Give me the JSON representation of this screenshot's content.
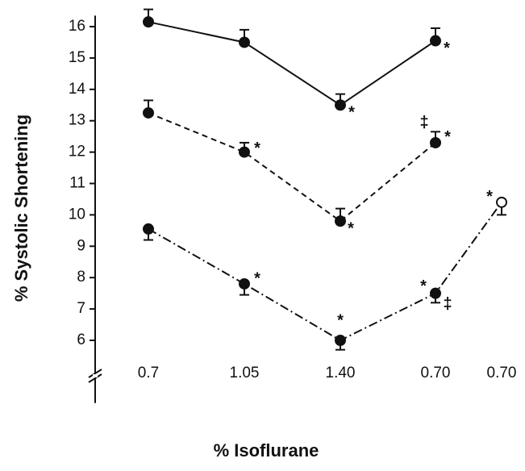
{
  "chart_data": {
    "type": "line",
    "x_label": "% Isoflurane",
    "y_label": "% Systolic Shortening",
    "categories": [
      "0.7",
      "1.05",
      "1.40",
      "0.70",
      "0.70"
    ],
    "ylim": [
      4,
      16.35
    ],
    "yticks": [
      6,
      7,
      8,
      9,
      10,
      11,
      12,
      13,
      14,
      15,
      16
    ],
    "y_axis_break": true,
    "series": [
      {
        "color": "#111111",
        "line_style": "solid",
        "error_direction": "up",
        "values": [
          16.15,
          15.5,
          13.5,
          15.55,
          null
        ],
        "errors": [
          0.4,
          0.4,
          0.35,
          0.4,
          null
        ],
        "point_labels": [
          null,
          null,
          [
            "*"
          ],
          [
            "*"
          ],
          null
        ],
        "open_points": []
      },
      {
        "color": "#111111",
        "line_style": "dashed",
        "error_direction": "up",
        "values": [
          13.25,
          12.0,
          9.8,
          12.3,
          null
        ],
        "errors": [
          0.4,
          0.3,
          0.4,
          0.35,
          null
        ],
        "point_labels": [
          null,
          [
            "*"
          ],
          [
            "*"
          ],
          [
            "‡",
            "*"
          ],
          null
        ],
        "open_points": []
      },
      {
        "color": "#111111",
        "line_style": "dashdot",
        "error_direction": "down",
        "values": [
          9.55,
          7.8,
          6.0,
          7.5,
          10.4
        ],
        "errors": [
          0.35,
          0.35,
          0.3,
          0.3,
          0.4
        ],
        "point_labels": [
          null,
          [
            "*"
          ],
          [
            "*"
          ],
          [
            "*",
            "‡"
          ],
          [
            "*"
          ]
        ],
        "open_points": [
          4
        ]
      }
    ]
  }
}
